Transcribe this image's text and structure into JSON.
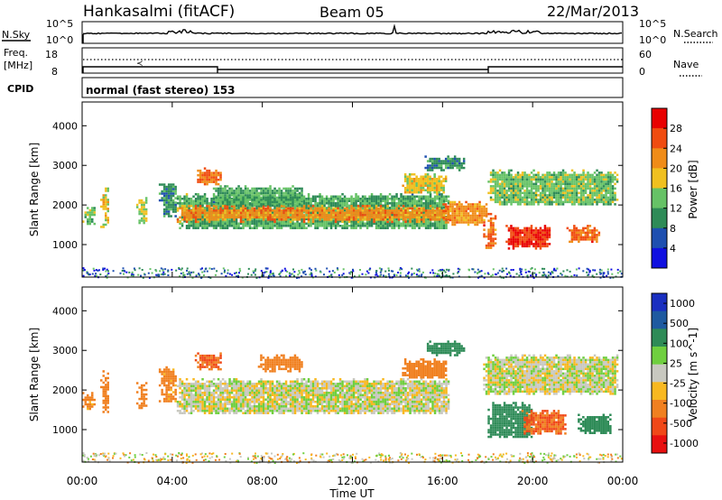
{
  "header": {
    "station": "Hankasalmi (fitACF)",
    "beam": "Beam 05",
    "date": "22/Mar/2013"
  },
  "top_panels": {
    "nsky_label": "N.Sky",
    "nsearch_label": "N.Search",
    "noise_ticks_left": [
      "10^5",
      "10^0"
    ],
    "noise_ticks_right": [
      "10^5",
      "10^0"
    ],
    "freq_label": "Freq.",
    "freq_unit": "[MHz]",
    "freq_ticks": [
      "18",
      "8"
    ],
    "nave_label": "Nave",
    "nave_ticks": [
      "60",
      "0"
    ],
    "cpid_label": "CPID",
    "cpid_text": "normal (fast stereo) 153"
  },
  "colors": {
    "power_scale": [
      "#1010e0",
      "#1e4fb0",
      "#2e8b57",
      "#66c266",
      "#f0c020",
      "#f08c18",
      "#f04c10",
      "#e80000"
    ],
    "velocity_scale": [
      "#1a2fc0",
      "#1e5aa0",
      "#2e8b57",
      "#6fcf3f",
      "#c8c8c0",
      "#f8b820",
      "#f08020",
      "#f04818",
      "#e81010"
    ]
  },
  "chart_data": [
    {
      "type": "heatmap",
      "title": "Power",
      "xlabel": "",
      "ylabel": "Slant Range [km]",
      "colorbar_label": "Power [dB]",
      "colorbar_ticks": [
        "4",
        "8",
        "12",
        "16",
        "20",
        "24",
        "28"
      ],
      "x_ticks": [
        "00:00",
        "04:00",
        "08:00",
        "12:00",
        "16:00",
        "20:00",
        "00:00"
      ],
      "y_ticks": [
        "1000",
        "2000",
        "3000",
        "4000"
      ],
      "xlim": [
        0,
        24
      ],
      "ylim": [
        180,
        4600
      ],
      "grid": false,
      "regions": [
        {
          "x": [
            0.0,
            0.6
          ],
          "y": [
            1500,
            1950
          ],
          "value": 14
        },
        {
          "x": [
            0.8,
            1.2
          ],
          "y": [
            1450,
            2500
          ],
          "value": 18
        },
        {
          "x": [
            2.4,
            2.9
          ],
          "y": [
            1550,
            2200
          ],
          "value": 16
        },
        {
          "x": [
            3.4,
            4.2
          ],
          "y": [
            1700,
            2600
          ],
          "value": 10
        },
        {
          "x": [
            4.2,
            16.3
          ],
          "y": [
            1400,
            2300
          ],
          "value": 12
        },
        {
          "x": [
            4.2,
            16.3
          ],
          "y": [
            1600,
            2000
          ],
          "value": 22
        },
        {
          "x": [
            5.0,
            6.2
          ],
          "y": [
            2500,
            2950
          ],
          "value": 24
        },
        {
          "x": [
            5.8,
            9.8
          ],
          "y": [
            2000,
            2500
          ],
          "value": 12
        },
        {
          "x": [
            14.2,
            16.2
          ],
          "y": [
            2300,
            2800
          ],
          "value": 18
        },
        {
          "x": [
            15.2,
            17.0
          ],
          "y": [
            2900,
            3250
          ],
          "value": 10
        },
        {
          "x": [
            16.0,
            18.0
          ],
          "y": [
            1500,
            2100
          ],
          "value": 22
        },
        {
          "x": [
            17.8,
            18.4
          ],
          "y": [
            900,
            1800
          ],
          "value": 24
        },
        {
          "x": [
            18.0,
            23.8
          ],
          "y": [
            2000,
            2900
          ],
          "value": 14
        },
        {
          "x": [
            18.8,
            20.8
          ],
          "y": [
            900,
            1500
          ],
          "value": 28
        },
        {
          "x": [
            21.5,
            23.0
          ],
          "y": [
            1100,
            1500
          ],
          "value": 24
        }
      ]
    },
    {
      "type": "heatmap",
      "title": "Velocity",
      "xlabel": "Time UT",
      "ylabel": "Slant Range [km]",
      "colorbar_label": "Velocity [m s^-1]",
      "colorbar_ticks": [
        "1000",
        "500",
        "100",
        "25",
        "-25",
        "-100",
        "-500",
        "-1000"
      ],
      "x_ticks": [
        "00:00",
        "04:00",
        "08:00",
        "12:00",
        "16:00",
        "20:00",
        "00:00"
      ],
      "y_ticks": [
        "1000",
        "2000",
        "3000",
        "4000"
      ],
      "xlim": [
        0,
        24
      ],
      "ylim": [
        180,
        4600
      ],
      "grid": false,
      "regions": [
        {
          "x": [
            0.0,
            0.6
          ],
          "y": [
            1500,
            1950
          ],
          "value": -100
        },
        {
          "x": [
            0.8,
            1.2
          ],
          "y": [
            1450,
            2500
          ],
          "value": -200
        },
        {
          "x": [
            2.4,
            2.9
          ],
          "y": [
            1550,
            2200
          ],
          "value": -150
        },
        {
          "x": [
            3.4,
            4.2
          ],
          "y": [
            1700,
            2600
          ],
          "value": -100
        },
        {
          "x": [
            4.2,
            16.3
          ],
          "y": [
            1400,
            2300
          ],
          "value": 0
        },
        {
          "x": [
            5.0,
            6.2
          ],
          "y": [
            2500,
            2950
          ],
          "value": -300
        },
        {
          "x": [
            7.8,
            9.8
          ],
          "y": [
            2500,
            2900
          ],
          "value": -200
        },
        {
          "x": [
            14.2,
            16.2
          ],
          "y": [
            2300,
            2800
          ],
          "value": -200
        },
        {
          "x": [
            15.2,
            17.0
          ],
          "y": [
            2900,
            3250
          ],
          "value": 200
        },
        {
          "x": [
            17.8,
            23.8
          ],
          "y": [
            1900,
            2900
          ],
          "value": 0
        },
        {
          "x": [
            18.0,
            20.0
          ],
          "y": [
            800,
            1700
          ],
          "value": 200
        },
        {
          "x": [
            19.5,
            21.5
          ],
          "y": [
            900,
            1500
          ],
          "value": -300
        },
        {
          "x": [
            22.0,
            23.5
          ],
          "y": [
            900,
            1400
          ],
          "value": 150
        }
      ]
    }
  ]
}
